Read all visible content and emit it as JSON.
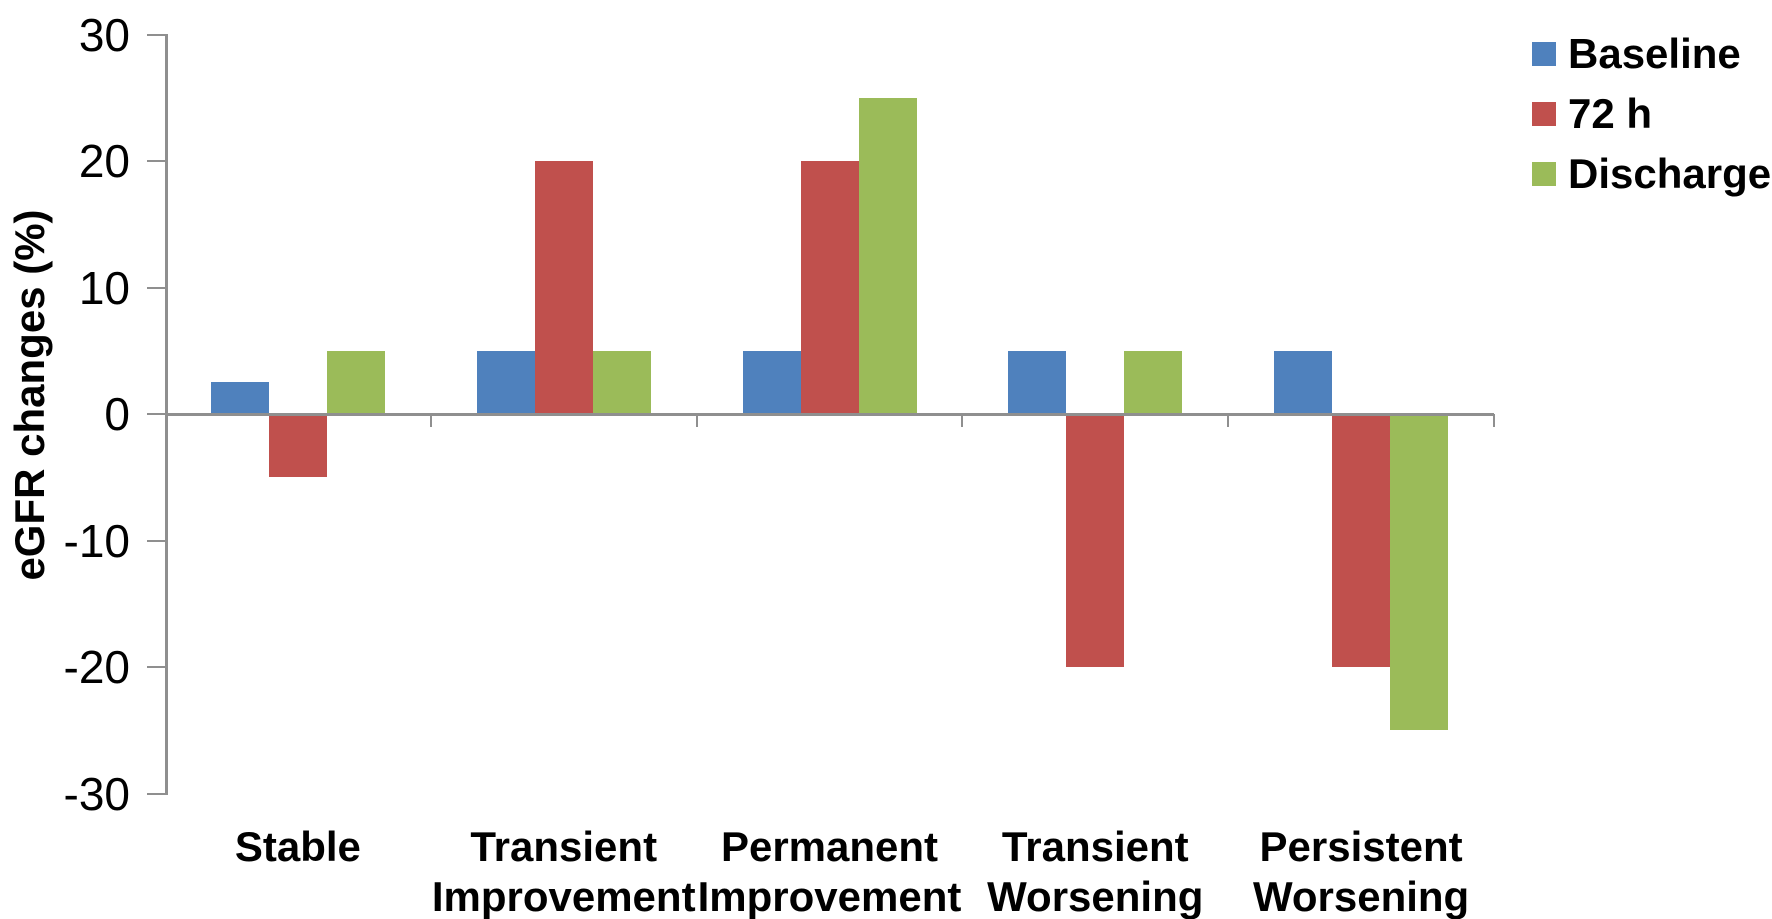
{
  "figure": {
    "background_color": "#ffffff",
    "axis_color": "#8f8f8f",
    "text_color": "#000000"
  },
  "chart_data": {
    "type": "bar",
    "title": "",
    "xlabel": "",
    "ylabel": "eGFR changes (%)",
    "ylim": [
      -30,
      30
    ],
    "y_tick_step": 10,
    "y_ticks": [
      30,
      20,
      10,
      0,
      -10,
      -20,
      -30
    ],
    "grid": false,
    "legend_position": "top-right",
    "categories": [
      "Stable",
      "Transient Improvement",
      "Permanent Improvement",
      "Transient Worsening",
      "Persistent Worsening"
    ],
    "category_label_lines": [
      [
        "Stable"
      ],
      [
        "Transient",
        "Improvement"
      ],
      [
        "Permanent",
        "Improvement"
      ],
      [
        "Transient",
        "Worsening"
      ],
      [
        "Persistent",
        "Worsening"
      ]
    ],
    "series": [
      {
        "name": "Baseline",
        "color": "#4F81BD",
        "values": [
          2.5,
          5,
          5,
          5,
          5
        ]
      },
      {
        "name": "72 h",
        "color": "#C0504D",
        "values": [
          -5,
          20,
          20,
          -20,
          -20
        ]
      },
      {
        "name": "Discharge",
        "color": "#9BBB59",
        "values": [
          5,
          5,
          25,
          5,
          -25
        ]
      }
    ]
  }
}
